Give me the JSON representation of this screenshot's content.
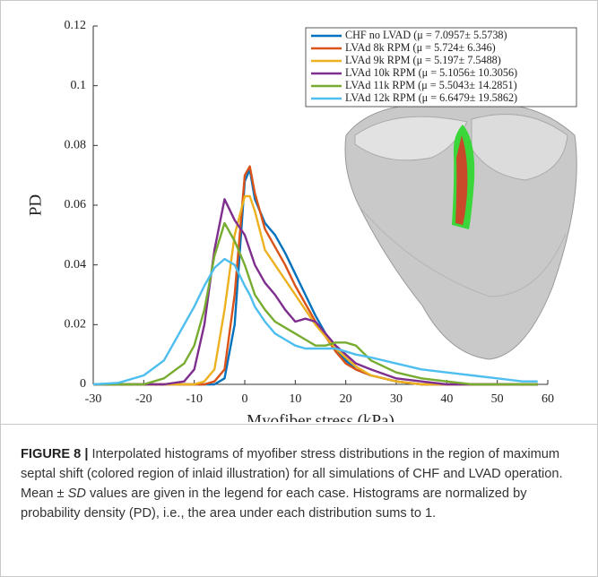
{
  "chart_data": {
    "type": "line",
    "xlabel": "Myofiber stress (kPa)",
    "ylabel": "PD",
    "x": [
      -30,
      -25,
      -20,
      -16,
      -12,
      -10,
      -8,
      -6,
      -4,
      -2,
      0,
      1,
      2,
      4,
      6,
      8,
      10,
      12,
      14,
      16,
      18,
      20,
      22,
      25,
      30,
      35,
      40,
      45,
      50,
      55,
      58
    ],
    "series": [
      {
        "name": "CHF no LVAD (μ = 7.0957± 5.5738)",
        "color": "#0072bd",
        "values": [
          0,
          0,
          0,
          0,
          0,
          0,
          0,
          0,
          0.002,
          0.02,
          0.068,
          0.072,
          0.062,
          0.054,
          0.05,
          0.044,
          0.037,
          0.03,
          0.023,
          0.017,
          0.012,
          0.008,
          0.005,
          0.003,
          0.001,
          0,
          0,
          0,
          0,
          0,
          0
        ]
      },
      {
        "name": "LVAd 8k RPM (μ = 5.724± 6.346)",
        "color": "#d95319",
        "values": [
          0,
          0,
          0,
          0,
          0,
          0,
          0,
          0.001,
          0.005,
          0.03,
          0.07,
          0.073,
          0.064,
          0.052,
          0.046,
          0.04,
          0.033,
          0.027,
          0.021,
          0.016,
          0.011,
          0.007,
          0.005,
          0.003,
          0.001,
          0,
          0,
          0,
          0,
          0,
          0
        ]
      },
      {
        "name": "LVAd 9k RPM (μ = 5.197± 7.5488)",
        "color": "#edb120",
        "values": [
          0,
          0,
          0,
          0,
          0,
          0,
          0.001,
          0.005,
          0.025,
          0.05,
          0.063,
          0.063,
          0.058,
          0.045,
          0.04,
          0.035,
          0.03,
          0.025,
          0.02,
          0.016,
          0.012,
          0.009,
          0.006,
          0.003,
          0.001,
          0,
          0,
          0,
          0,
          0,
          0
        ]
      },
      {
        "name": "LVAd 10k RPM (μ = 5.1056± 10.3056)",
        "color": "#7e2f8e",
        "values": [
          0,
          0,
          0,
          0,
          0.001,
          0.005,
          0.02,
          0.045,
          0.062,
          0.055,
          0.05,
          0.045,
          0.04,
          0.034,
          0.03,
          0.025,
          0.021,
          0.022,
          0.021,
          0.017,
          0.013,
          0.01,
          0.007,
          0.005,
          0.002,
          0.001,
          0,
          0,
          0,
          0,
          0
        ]
      },
      {
        "name": "LVAd 11k RPM (μ = 5.5043± 14.2851)",
        "color": "#77ac30",
        "values": [
          0,
          0,
          0,
          0.002,
          0.007,
          0.013,
          0.025,
          0.043,
          0.054,
          0.048,
          0.04,
          0.035,
          0.03,
          0.025,
          0.021,
          0.019,
          0.017,
          0.015,
          0.013,
          0.013,
          0.014,
          0.014,
          0.013,
          0.008,
          0.004,
          0.002,
          0.001,
          0,
          0,
          0,
          0
        ]
      },
      {
        "name": "LVAd 12k RPM (μ = 6.6479± 19.5862)",
        "color": "#4dbeee",
        "values": [
          0,
          0.0005,
          0.003,
          0.008,
          0.02,
          0.026,
          0.033,
          0.039,
          0.042,
          0.04,
          0.033,
          0.03,
          0.026,
          0.021,
          0.017,
          0.015,
          0.013,
          0.012,
          0.012,
          0.012,
          0.012,
          0.011,
          0.01,
          0.009,
          0.007,
          0.005,
          0.004,
          0.003,
          0.002,
          0.001,
          0.001
        ]
      }
    ],
    "xlim": [
      -30,
      60
    ],
    "xticks": [
      -30,
      -20,
      -10,
      0,
      10,
      20,
      30,
      40,
      50,
      60
    ],
    "ylim": [
      0,
      0.12
    ],
    "yticks": [
      0,
      0.02,
      0.04,
      0.06,
      0.08,
      0.1,
      0.12
    ],
    "legend": "upper right",
    "grid": false
  },
  "caption": {
    "label": "FIGURE 8 |",
    "text_before": " Interpolated histograms of myofiber stress distributions in the region of maximum septal shift (colored region of inlaid illustration) for all simulations of CHF and LVAD operation. Mean ± ",
    "emphasis": "SD",
    "text_after": " values are given in the legend for each case. Histograms are normalized by probability density (PD), i.e., the area under each distribution sums to 1."
  }
}
